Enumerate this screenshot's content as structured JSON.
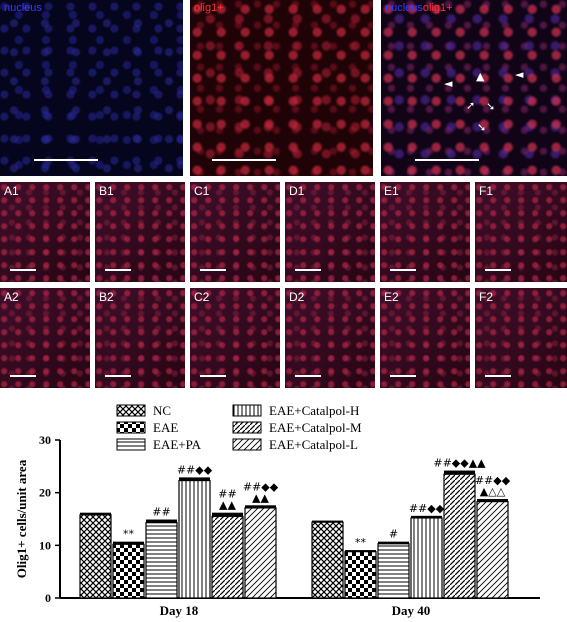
{
  "top_panels": [
    {
      "label": "nucleus",
      "color": "#3a3aff"
    },
    {
      "label": "olig1+",
      "color": "#ff3030"
    },
    {
      "label_a": "nucleus",
      "label_b": "olig1+",
      "color_a": "#3a3aff",
      "color_b": "#ff3030"
    }
  ],
  "grid_row1": [
    "A1",
    "B1",
    "C1",
    "D1",
    "E1",
    "F1"
  ],
  "grid_row2": [
    "A2",
    "B2",
    "C2",
    "D2",
    "E2",
    "F2"
  ],
  "chart_data": {
    "type": "bar",
    "ylabel": "Olig1+ cells/unit area",
    "ylim": [
      0,
      30
    ],
    "yticks": [
      "0",
      "10",
      "20",
      "30"
    ],
    "categories": [
      "Day 18",
      "Day 40"
    ],
    "series": [
      {
        "name": "NC",
        "values": [
          15.8,
          14.4
        ],
        "errors": [
          0.4,
          0.3
        ]
      },
      {
        "name": "EAE",
        "values": [
          10.2,
          8.8
        ],
        "errors": [
          0.5,
          0.3
        ]
      },
      {
        "name": "EAE+PA",
        "values": [
          14.3,
          10.3
        ],
        "errors": [
          0.6,
          0.4
        ]
      },
      {
        "name": "EAE+Catalpol-H",
        "values": [
          22.3,
          15.2
        ],
        "errors": [
          0.6,
          0.4
        ]
      },
      {
        "name": "EAE+Catalpol-M",
        "values": [
          15.5,
          23.5
        ],
        "errors": [
          0.7,
          0.7
        ]
      },
      {
        "name": "EAE+Catalpol-L",
        "values": [
          17.1,
          18.3
        ],
        "errors": [
          0.5,
          0.5
        ]
      }
    ],
    "annotations": [
      [
        "",
        "**",
        "##",
        "##◆◆",
        "##\n▲▲",
        "##◆◆\n▲▲"
      ],
      [
        "",
        "**",
        "#",
        "##◆◆",
        "##◆◆▲▲",
        "##◆◆\n▲△△"
      ]
    ],
    "legend_placement": "top"
  }
}
